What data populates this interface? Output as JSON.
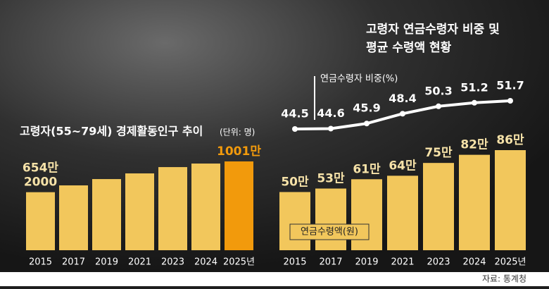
{
  "chart_data": [
    {
      "type": "bar",
      "title": "고령자(55~79세) 경제활동인구 추이",
      "unit_note": "(단위: 명)",
      "categories": [
        "2015",
        "2017",
        "2019",
        "2021",
        "2023",
        "2024",
        "2025년"
      ],
      "values": [
        654.2,
        731,
        802,
        866,
        937,
        977,
        1001
      ],
      "value_labels": [
        [
          "654만",
          "2000"
        ],
        null,
        null,
        null,
        null,
        null,
        [
          "1001만"
        ]
      ],
      "colors": [
        "#f2c75c",
        "#f2c75c",
        "#f2c75c",
        "#f2c75c",
        "#f2c75c",
        "#f2c75c",
        "#f29a0c"
      ]
    },
    {
      "type": "combo",
      "title": [
        "고령자  연금수령자 비중 및",
        "평균 수령액 현황"
      ],
      "categories": [
        "2015",
        "2017",
        "2019",
        "2021",
        "2023",
        "2024",
        "2025년"
      ],
      "series": [
        {
          "name": "연금수령자 비중(%)",
          "type": "line",
          "color": "#ffffff",
          "values": [
            44.5,
            44.6,
            45.9,
            48.4,
            50.3,
            51.2,
            51.7
          ]
        },
        {
          "name": "연금수령액(원)",
          "type": "bar",
          "color": "#f2c75c",
          "values": [
            50,
            53,
            61,
            64,
            75,
            82,
            86
          ],
          "value_labels": [
            "50만",
            "53만",
            "61만",
            "64만",
            "75만",
            "82만",
            "86만"
          ]
        }
      ]
    }
  ],
  "source": "자료: 통계청"
}
